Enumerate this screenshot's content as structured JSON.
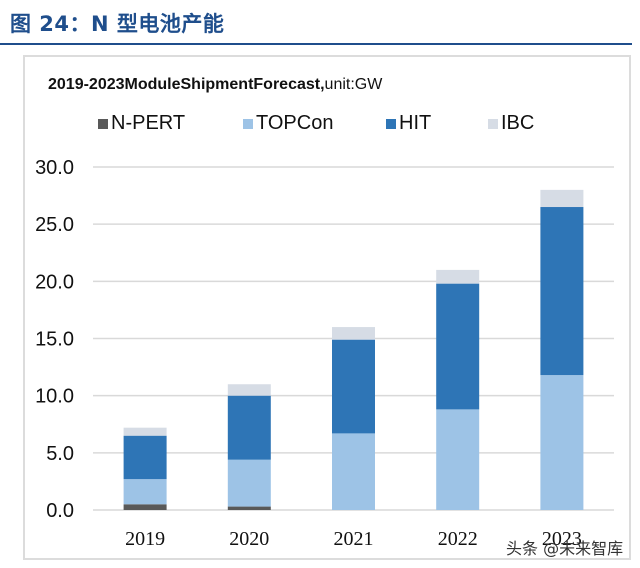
{
  "figure": {
    "title": "图 24：N 型电池产能"
  },
  "watermark": "头条 @未来智库",
  "colors": {
    "N-PERT": "#595959",
    "TOPCon": "#9dc3e6",
    "HIT": "#2e75b6",
    "IBC": "#d6dce5",
    "grid": "#d9d9d9",
    "title": "#1f4e8c"
  },
  "chart_data": {
    "type": "bar",
    "stacked": true,
    "title_bold": "2019-2023ModuleShipmentForecast,",
    "title_normal": "unit:GW",
    "xlabel": "",
    "ylabel": "",
    "categories": [
      "2019",
      "2020",
      "2021",
      "2022",
      "2023"
    ],
    "series": [
      {
        "name": "N-PERT",
        "values": [
          0.5,
          0.3,
          0.0,
          0.0,
          0.0
        ]
      },
      {
        "name": "TOPCon",
        "values": [
          2.2,
          4.1,
          6.7,
          8.8,
          11.8
        ]
      },
      {
        "name": "HIT",
        "values": [
          3.8,
          5.6,
          8.2,
          11.0,
          14.7
        ]
      },
      {
        "name": "IBC",
        "values": [
          0.7,
          1.0,
          1.1,
          1.2,
          1.5
        ]
      }
    ],
    "ylim": [
      0,
      30
    ],
    "yticks": [
      0,
      5,
      10,
      15,
      20,
      25,
      30
    ],
    "ytick_labels": [
      "0.0",
      "5.0",
      "10.0",
      "15.0",
      "20.0",
      "25.0",
      "30.0"
    ],
    "grid": true,
    "legend_position": "top"
  }
}
